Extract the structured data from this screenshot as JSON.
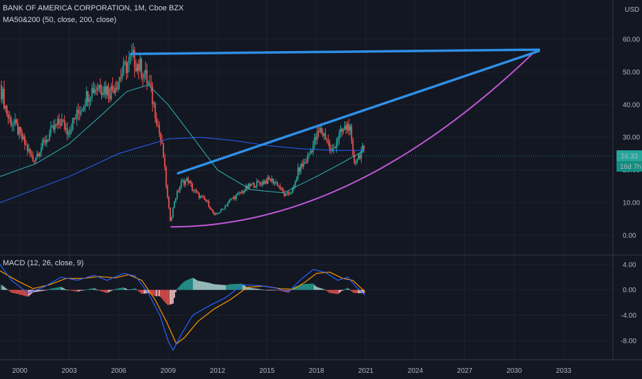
{
  "header": {
    "symbol_title": "BANK OF AMERICA CORPORATION, 1M, Cboe BZX",
    "ma_label": "MA50&200 (50, close, 200, close)",
    "currency": "USD"
  },
  "price_badges": {
    "last_price": "24.33",
    "countdown": "16d 7h"
  },
  "macd_panel": {
    "label": "MACD (12, 26, close, 9)"
  },
  "colors": {
    "background": "#131722",
    "up": "#26a69a",
    "down": "#ef5350",
    "trendline": "#2f8fe6",
    "curve": "#c058d8",
    "ma50": "#2cb7b7",
    "ma200": "#2962ff",
    "macd": "#2962ff",
    "signal": "#ff9800"
  },
  "chart_data": [
    {
      "type": "candlestick",
      "title": "BANK OF AMERICA CORPORATION, 1M, Cboe BZX",
      "x_ticks": [
        "2000",
        "2003",
        "2006",
        "2009",
        "2012",
        "2015",
        "2018",
        "2021",
        "2024",
        "2027",
        "2030",
        "2033"
      ],
      "xlim": [
        1998.8,
        2036.0
      ],
      "y_ticks": [
        0.0,
        10.0,
        20.0,
        30.0,
        40.0,
        50.0,
        60.0
      ],
      "ylim": [
        -6,
        72
      ],
      "y_tick_labels": [
        "0.00",
        "10.00",
        "20.00",
        "30.00",
        "40.00",
        "50.00",
        "60.00"
      ],
      "grid": true,
      "price_path": [
        [
          1998.8,
          46
        ],
        [
          1999.3,
          36
        ],
        [
          1999.8,
          33
        ],
        [
          2000.3,
          28
        ],
        [
          2000.8,
          23
        ],
        [
          2001.3,
          27
        ],
        [
          2001.8,
          31
        ],
        [
          2002.5,
          35
        ],
        [
          2002.9,
          32
        ],
        [
          2003.5,
          37
        ],
        [
          2004.2,
          44
        ],
        [
          2004.8,
          46
        ],
        [
          2005.5,
          44
        ],
        [
          2006.0,
          48
        ],
        [
          2006.6,
          53
        ],
        [
          2006.9,
          54
        ],
        [
          2007.5,
          50
        ],
        [
          2007.9,
          45
        ],
        [
          2008.3,
          36
        ],
        [
          2008.7,
          25
        ],
        [
          2008.95,
          12
        ],
        [
          2009.15,
          4
        ],
        [
          2009.4,
          11
        ],
        [
          2009.8,
          16
        ],
        [
          2010.2,
          17
        ],
        [
          2010.5,
          14
        ],
        [
          2010.9,
          12
        ],
        [
          2011.4,
          10
        ],
        [
          2011.8,
          6
        ],
        [
          2012.3,
          8
        ],
        [
          2012.8,
          11
        ],
        [
          2013.4,
          13
        ],
        [
          2013.9,
          15
        ],
        [
          2014.5,
          16
        ],
        [
          2015.2,
          17
        ],
        [
          2015.6,
          16
        ],
        [
          2016.1,
          12
        ],
        [
          2016.6,
          14
        ],
        [
          2016.9,
          20
        ],
        [
          2017.4,
          23
        ],
        [
          2017.9,
          29
        ],
        [
          2018.2,
          32
        ],
        [
          2018.6,
          30
        ],
        [
          2018.9,
          25
        ],
        [
          2019.3,
          30
        ],
        [
          2019.8,
          33
        ],
        [
          2020.0,
          34
        ],
        [
          2020.25,
          22
        ],
        [
          2020.5,
          24
        ],
        [
          2020.8,
          26
        ],
        [
          2020.95,
          24.33
        ]
      ],
      "ma50": [
        [
          1998.8,
          18
        ],
        [
          2001.0,
          22
        ],
        [
          2003.0,
          28
        ],
        [
          2005.0,
          37
        ],
        [
          2006.5,
          44
        ],
        [
          2007.8,
          46
        ],
        [
          2009.0,
          40
        ],
        [
          2010.5,
          30
        ],
        [
          2012.0,
          20
        ],
        [
          2014.0,
          14
        ],
        [
          2016.0,
          13
        ],
        [
          2018.0,
          18
        ],
        [
          2019.5,
          22
        ],
        [
          2020.9,
          26
        ]
      ],
      "ma200": [
        [
          1998.8,
          10
        ],
        [
          2003.0,
          18
        ],
        [
          2006.0,
          25
        ],
        [
          2009.0,
          29.5
        ],
        [
          2011.0,
          30
        ],
        [
          2013.0,
          29
        ],
        [
          2015.0,
          27.5
        ],
        [
          2017.0,
          26.5
        ],
        [
          2019.0,
          26
        ],
        [
          2020.9,
          26
        ]
      ],
      "trendlines": [
        {
          "from": [
            2006.75,
            55.5
          ],
          "to": [
            2031.5,
            56.8
          ]
        },
        {
          "from": [
            2009.6,
            19.0
          ],
          "to": [
            2031.5,
            56.4
          ]
        }
      ],
      "support_curve": {
        "from": [
          2009.15,
          2.6
        ],
        "to": [
          2031.2,
          56.0
        ],
        "shape": "parabolic"
      }
    },
    {
      "type": "line",
      "title": "MACD (12, 26, close, 9)",
      "y_ticks": [
        -8.0,
        -4.0,
        0.0,
        4.0
      ],
      "y_tick_labels": [
        "-8.00",
        "-4.00",
        "0.00",
        "4.00"
      ],
      "ylim": [
        -11,
        5.5
      ],
      "series": [
        {
          "name": "MACD",
          "values": [
            [
              1998.8,
              4
            ],
            [
              1999.5,
              1.5
            ],
            [
              2000.5,
              -0.5
            ],
            [
              2001.5,
              0.5
            ],
            [
              2002.5,
              2
            ],
            [
              2003.5,
              1.5
            ],
            [
              2004.5,
              2.3
            ],
            [
              2005.3,
              1.5
            ],
            [
              2006.3,
              2.6
            ],
            [
              2007.0,
              2.2
            ],
            [
              2007.8,
              -0.5
            ],
            [
              2008.5,
              -4
            ],
            [
              2009.0,
              -8
            ],
            [
              2009.3,
              -9.5
            ],
            [
              2009.8,
              -7
            ],
            [
              2010.5,
              -4
            ],
            [
              2011.5,
              -2.5
            ],
            [
              2012.5,
              -1.2
            ],
            [
              2013.5,
              0.8
            ],
            [
              2014.5,
              0.7
            ],
            [
              2015.5,
              0.3
            ],
            [
              2016.3,
              -0.3
            ],
            [
              2017.0,
              1.5
            ],
            [
              2017.8,
              3.2
            ],
            [
              2018.5,
              2.8
            ],
            [
              2019.3,
              1.5
            ],
            [
              2019.9,
              2
            ],
            [
              2020.4,
              0.5
            ],
            [
              2020.95,
              -0.8
            ]
          ]
        },
        {
          "name": "Signal",
          "values": [
            [
              1998.8,
              3
            ],
            [
              1999.8,
              1.5
            ],
            [
              2000.8,
              0.2
            ],
            [
              2001.8,
              0.8
            ],
            [
              2002.8,
              1.8
            ],
            [
              2003.8,
              1.8
            ],
            [
              2004.8,
              2.1
            ],
            [
              2005.8,
              1.9
            ],
            [
              2006.6,
              2.4
            ],
            [
              2007.4,
              1.5
            ],
            [
              2008.2,
              -1.5
            ],
            [
              2008.9,
              -5
            ],
            [
              2009.5,
              -8.5
            ],
            [
              2010.0,
              -7.5
            ],
            [
              2010.8,
              -5
            ],
            [
              2011.8,
              -3
            ],
            [
              2012.8,
              -1.5
            ],
            [
              2013.8,
              0.4
            ],
            [
              2014.8,
              0.6
            ],
            [
              2015.8,
              0.2
            ],
            [
              2016.6,
              0.1
            ],
            [
              2017.3,
              1.2
            ],
            [
              2018.0,
              2.6
            ],
            [
              2018.8,
              2.8
            ],
            [
              2019.6,
              1.8
            ],
            [
              2020.2,
              1.5
            ],
            [
              2020.95,
              -0.3
            ]
          ]
        },
        {
          "name": "Histogram",
          "values": "MACD minus Signal"
        }
      ]
    }
  ]
}
